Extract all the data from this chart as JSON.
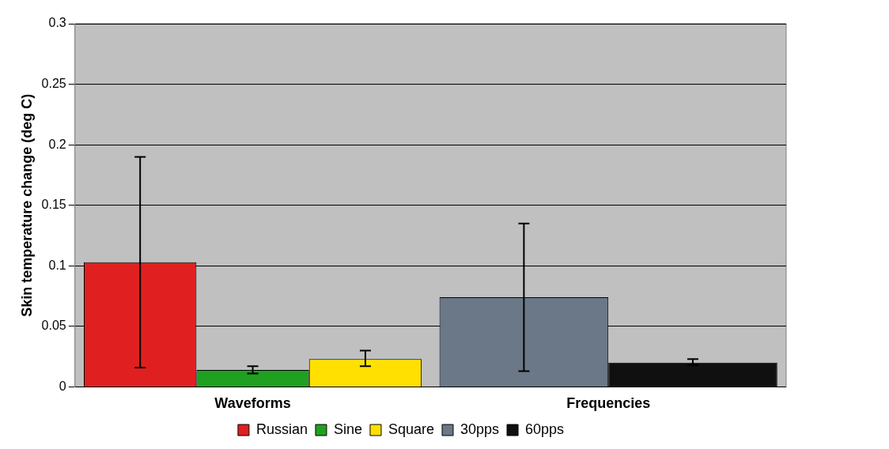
{
  "chart_data": {
    "type": "bar",
    "ylabel": "Skin temperature change (deg C)",
    "categories": [
      "Waveforms",
      "Frequencies"
    ],
    "series": [
      {
        "name": "Russian",
        "color": "#e02020",
        "values": [
          0.103,
          null
        ],
        "errors": [
          [
            0.016,
            0.19
          ],
          null
        ]
      },
      {
        "name": "Sine",
        "color": "#20a020",
        "values": [
          0.014,
          null
        ],
        "errors": [
          [
            0.011,
            0.017
          ],
          null
        ]
      },
      {
        "name": "Square",
        "color": "#ffe000",
        "values": [
          0.023,
          null
        ],
        "errors": [
          [
            0.017,
            0.03
          ],
          null
        ]
      },
      {
        "name": "30pps",
        "color": "#6a7888",
        "values": [
          null,
          0.074
        ],
        "errors": [
          null,
          [
            0.013,
            0.135
          ]
        ]
      },
      {
        "name": "60pps",
        "color": "#101010",
        "values": [
          null,
          0.02
        ],
        "errors": [
          null,
          [
            0.018,
            0.023
          ]
        ]
      }
    ],
    "ylim": [
      0,
      0.3
    ],
    "yticks": [
      0,
      0.05,
      0.1,
      0.15,
      0.2,
      0.25,
      0.3
    ],
    "grid": "y",
    "legend": "bottom"
  }
}
